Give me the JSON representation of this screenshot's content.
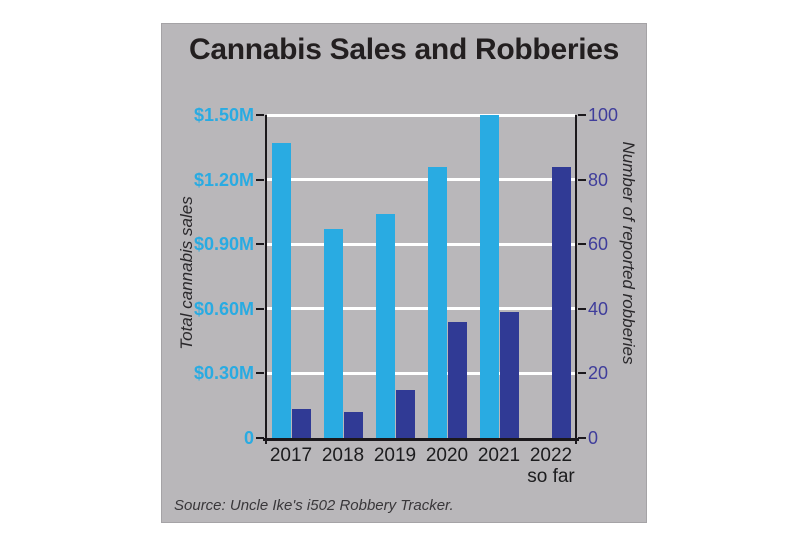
{
  "title": "Cannabis Sales and Robberies",
  "source": "Source: Uncle Ike's i502 Robbery Tracker.",
  "chart_data": {
    "type": "bar",
    "title": "Cannabis Sales and Robberies",
    "categories": [
      "2017",
      "2018",
      "2019",
      "2020",
      "2021",
      "2022"
    ],
    "category_sublabels": [
      "",
      "",
      "",
      "",
      "",
      "so far"
    ],
    "series": [
      {
        "name": "Total cannabis sales",
        "axis": "left",
        "unit": "million USD",
        "color": "#29abe2",
        "values": [
          1.37,
          0.97,
          1.04,
          1.26,
          1.5,
          null
        ]
      },
      {
        "name": "Number of reported robberies",
        "axis": "right",
        "unit": "count",
        "color": "#303a95",
        "values": [
          9,
          8,
          15,
          36,
          39,
          84
        ]
      }
    ],
    "left_axis": {
      "label": "Total cannabis sales",
      "tick_labels": [
        "$1.50M",
        "$1.20M",
        "$0.90M",
        "$0.60M",
        "$0.30M",
        "0"
      ],
      "tick_values": [
        1.5,
        1.2,
        0.9,
        0.6,
        0.3,
        0
      ],
      "range": [
        0,
        1.5
      ],
      "tick_color": "#29abe2"
    },
    "right_axis": {
      "label": "Number of reported robberies",
      "tick_labels": [
        "100",
        "80",
        "60",
        "40",
        "20",
        "0"
      ],
      "tick_values": [
        100,
        80,
        60,
        40,
        20,
        0
      ],
      "range": [
        0,
        100
      ],
      "tick_color": "#3f3d9b"
    },
    "grid": true,
    "legend": "none"
  },
  "colors": {
    "page_bg": "#ffffff",
    "card_bg": "#b9b7ba",
    "sales_bar": "#29abe2",
    "robberies_bar": "#303a95",
    "axis_line": "#1b181c",
    "gridline": "#ffffff",
    "title_text": "#231f20"
  }
}
